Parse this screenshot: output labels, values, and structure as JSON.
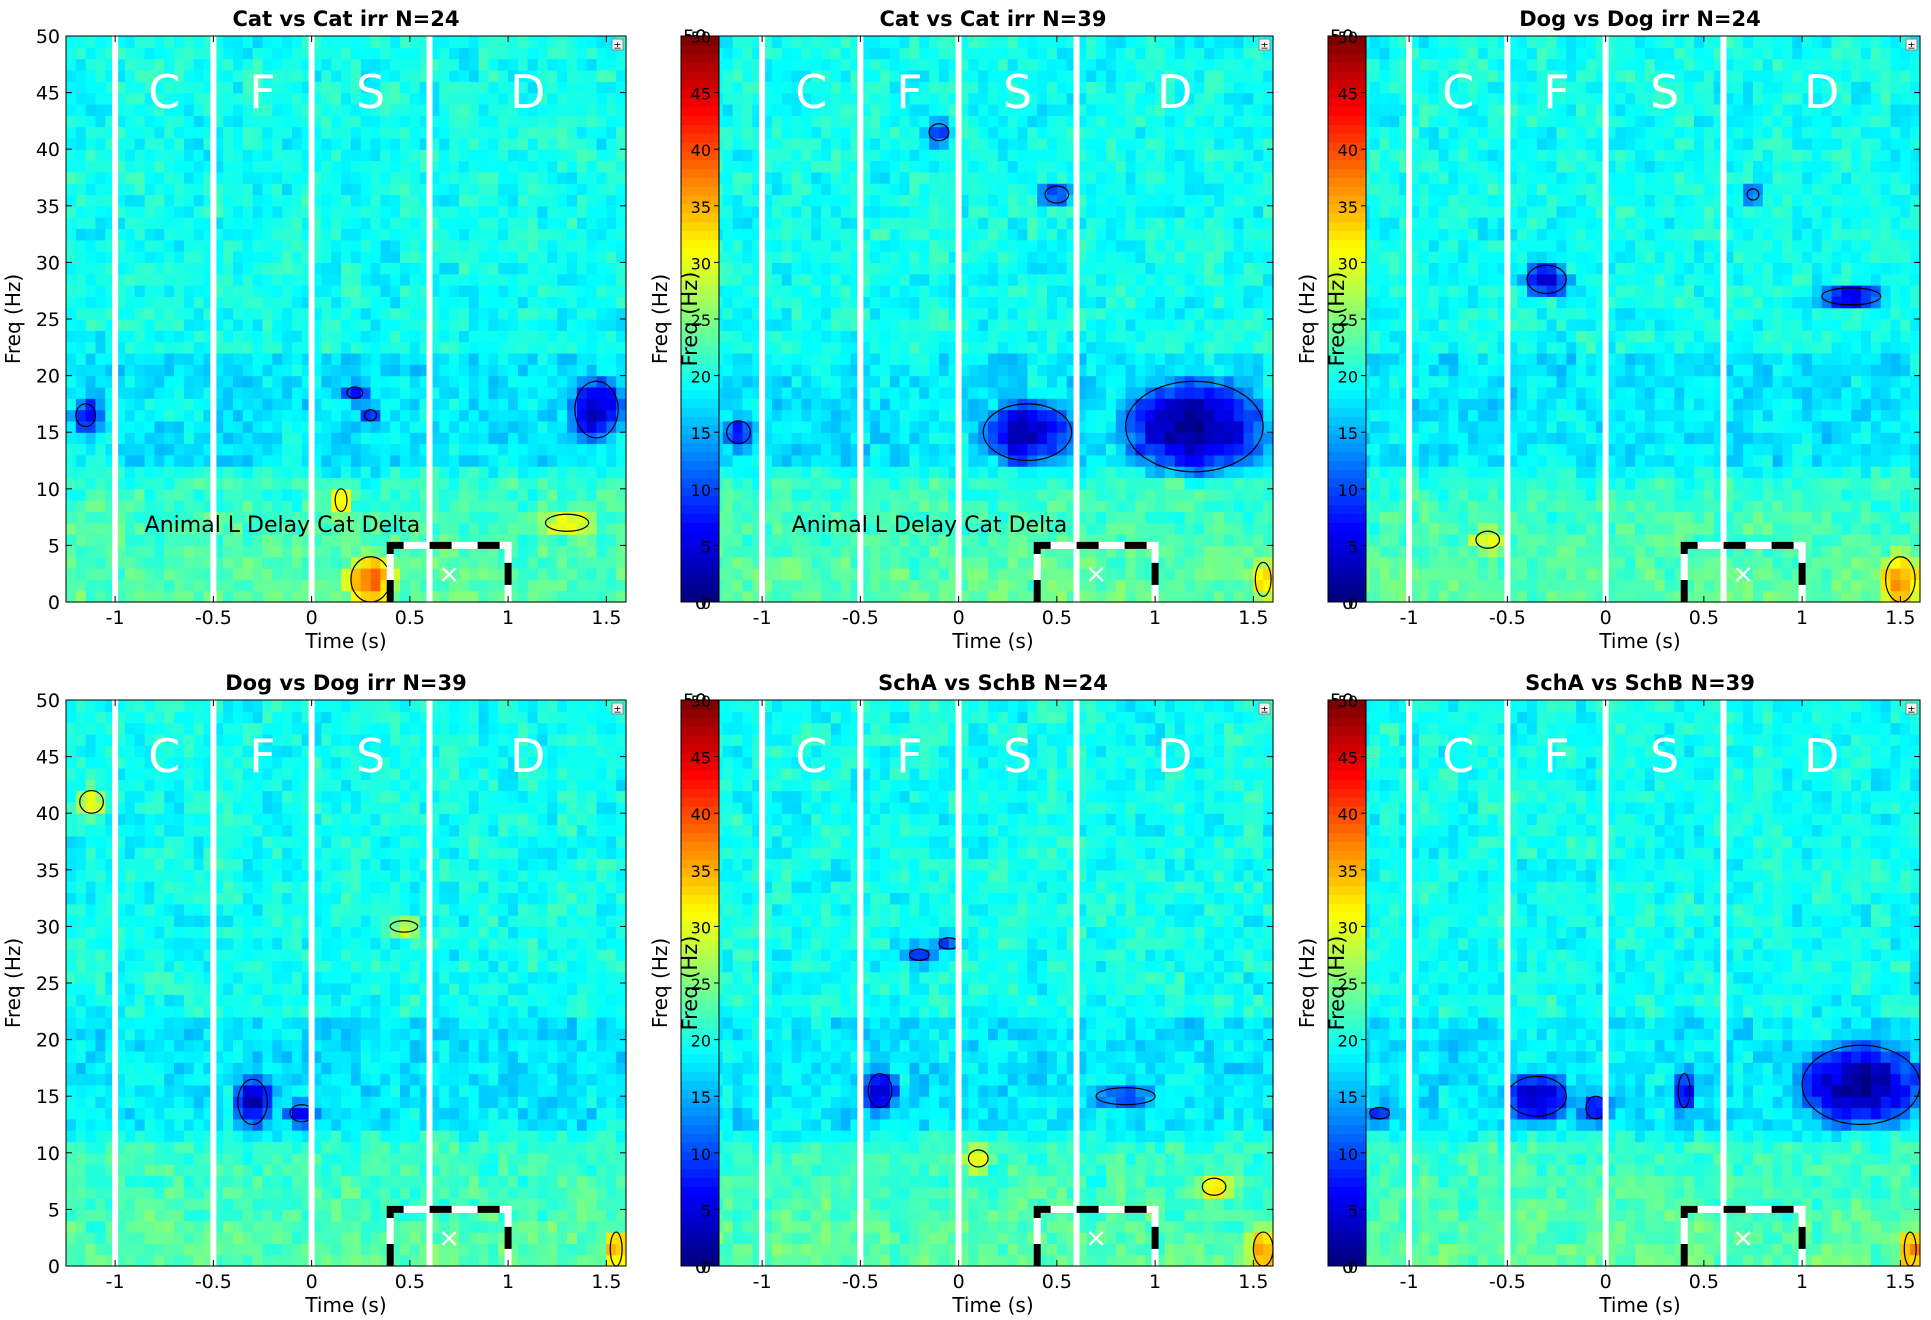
{
  "chart_data": [
    {
      "type": "heatmap",
      "title": "Cat vs Cat irr N=24",
      "xlabel": "Time (s)",
      "ylabel": "Freq (Hz)",
      "xlim": [
        -1.25,
        1.6
      ],
      "ylim": [
        0,
        50
      ],
      "xticks": [
        -1,
        -0.5,
        0,
        0.5,
        1,
        1.5
      ],
      "yticks": [
        0,
        5,
        10,
        15,
        20,
        25,
        30,
        35,
        40,
        45,
        50
      ],
      "epoch_boundaries": [
        -1,
        -0.5,
        0,
        0.6
      ],
      "epoch_labels": [
        {
          "label": "C",
          "x": -0.75
        },
        {
          "label": "F",
          "x": -0.25
        },
        {
          "label": "S",
          "x": 0.3
        },
        {
          "label": "D",
          "x": 1.1
        }
      ],
      "annotation": "Animal L Delay Cat Delta",
      "roi": {
        "x": [
          0.4,
          1.0
        ],
        "y": [
          0,
          5
        ]
      },
      "colorbar": null,
      "clusters": [
        {
          "t": 1.45,
          "f": 17,
          "w": 0.22,
          "h": 5,
          "sign": -1,
          "s": 0.9
        },
        {
          "t": -1.15,
          "f": 16.5,
          "w": 0.1,
          "h": 2,
          "sign": -1,
          "s": 0.7
        },
        {
          "t": 0.22,
          "f": 18.5,
          "w": 0.08,
          "h": 1,
          "sign": -1,
          "s": 0.6
        },
        {
          "t": 0.3,
          "f": 16.5,
          "w": 0.06,
          "h": 1,
          "sign": -1,
          "s": 0.6
        },
        {
          "t": 0.3,
          "f": 2,
          "w": 0.2,
          "h": 4,
          "sign": 1,
          "s": 0.9
        },
        {
          "t": 1.3,
          "f": 7,
          "w": 0.22,
          "h": 1.5,
          "sign": 1,
          "s": 0.6
        },
        {
          "t": 0.15,
          "f": 9,
          "w": 0.06,
          "h": 2,
          "sign": 1,
          "s": 0.7
        }
      ]
    },
    {
      "type": "heatmap",
      "title": "Cat vs Cat irr N=39",
      "xlabel": "Time (s)",
      "ylabel": "Freq (Hz)",
      "xlim": [
        -1.25,
        1.6
      ],
      "ylim": [
        0,
        50
      ],
      "xticks": [
        -1,
        -0.5,
        0,
        0.5,
        1,
        1.5
      ],
      "yticks": [
        0,
        5,
        10,
        15,
        20,
        25,
        30,
        35,
        40,
        45,
        50
      ],
      "epoch_boundaries": [
        -1,
        -0.5,
        0,
        0.6
      ],
      "epoch_labels": [
        {
          "label": "C",
          "x": -0.75
        },
        {
          "label": "F",
          "x": -0.25
        },
        {
          "label": "S",
          "x": 0.3
        },
        {
          "label": "D",
          "x": 1.1
        }
      ],
      "annotation": "Animal L Delay Cat Delta",
      "roi": {
        "x": [
          0.4,
          1.0
        ],
        "y": [
          0,
          5
        ]
      },
      "colorbar": {
        "ticks": [
          0,
          5,
          10,
          15,
          20,
          25,
          30,
          35,
          40,
          45,
          50
        ],
        "label": "Freq (Hz)"
      },
      "clusters": [
        {
          "t": 1.2,
          "f": 15.5,
          "w": 0.7,
          "h": 8,
          "sign": -1,
          "s": 1.0
        },
        {
          "t": 0.35,
          "f": 15,
          "w": 0.45,
          "h": 5,
          "sign": -1,
          "s": 0.9
        },
        {
          "t": 0.5,
          "f": 36,
          "w": 0.12,
          "h": 1.5,
          "sign": -1,
          "s": 0.7
        },
        {
          "t": -1.12,
          "f": 15,
          "w": 0.12,
          "h": 2,
          "sign": -1,
          "s": 0.6
        },
        {
          "t": -0.1,
          "f": 41.5,
          "w": 0.1,
          "h": 1.5,
          "sign": -1,
          "s": 0.6
        },
        {
          "t": 1.55,
          "f": 2,
          "w": 0.08,
          "h": 3,
          "sign": 1,
          "s": 0.6
        }
      ]
    },
    {
      "type": "heatmap",
      "title": "Dog vs Dog irr N=24",
      "xlabel": "Time (s)",
      "ylabel": "Freq (Hz)",
      "xlim": [
        -1.25,
        1.6
      ],
      "ylim": [
        0,
        50
      ],
      "xticks": [
        -1,
        -0.5,
        0,
        0.5,
        1,
        1.5
      ],
      "yticks": [
        0,
        5,
        10,
        15,
        20,
        25,
        30,
        35,
        40,
        45,
        50
      ],
      "epoch_boundaries": [
        -1,
        -0.5,
        0,
        0.6
      ],
      "epoch_labels": [
        {
          "label": "C",
          "x": -0.75
        },
        {
          "label": "F",
          "x": -0.25
        },
        {
          "label": "S",
          "x": 0.3
        },
        {
          "label": "D",
          "x": 1.1
        }
      ],
      "annotation": "",
      "roi": {
        "x": [
          0.4,
          1.0
        ],
        "y": [
          0,
          5
        ]
      },
      "colorbar": {
        "ticks": [
          0,
          5,
          10,
          15,
          20,
          25,
          30,
          35,
          40,
          45,
          50
        ],
        "label": "Freq (Hz)"
      },
      "clusters": [
        {
          "t": -0.3,
          "f": 28.5,
          "w": 0.2,
          "h": 2.5,
          "sign": -1,
          "s": 0.9
        },
        {
          "t": 1.25,
          "f": 27,
          "w": 0.3,
          "h": 1.5,
          "sign": -1,
          "s": 0.8
        },
        {
          "t": 0.75,
          "f": 36,
          "w": 0.06,
          "h": 1,
          "sign": -1,
          "s": 0.6
        },
        {
          "t": 1.5,
          "f": 2,
          "w": 0.15,
          "h": 4,
          "sign": 1,
          "s": 0.9
        },
        {
          "t": -0.6,
          "f": 5.5,
          "w": 0.12,
          "h": 1.5,
          "sign": 1,
          "s": 0.6
        }
      ]
    },
    {
      "type": "heatmap",
      "title": "Dog vs Dog irr N=39",
      "xlabel": "Time (s)",
      "ylabel": "Freq (Hz)",
      "xlim": [
        -1.25,
        1.6
      ],
      "ylim": [
        0,
        50
      ],
      "xticks": [
        -1,
        -0.5,
        0,
        0.5,
        1,
        1.5
      ],
      "yticks": [
        0,
        5,
        10,
        15,
        20,
        25,
        30,
        35,
        40,
        45,
        50
      ],
      "epoch_boundaries": [
        -1,
        -0.5,
        0,
        0.6
      ],
      "epoch_labels": [
        {
          "label": "C",
          "x": -0.75
        },
        {
          "label": "F",
          "x": -0.25
        },
        {
          "label": "S",
          "x": 0.3
        },
        {
          "label": "D",
          "x": 1.1
        }
      ],
      "annotation": "",
      "roi": {
        "x": [
          0.4,
          1.0
        ],
        "y": [
          0,
          5
        ]
      },
      "colorbar": null,
      "clusters": [
        {
          "t": -0.3,
          "f": 14.5,
          "w": 0.15,
          "h": 4,
          "sign": -1,
          "s": 0.9
        },
        {
          "t": -0.05,
          "f": 13.5,
          "w": 0.12,
          "h": 1.5,
          "sign": -1,
          "s": 0.7
        },
        {
          "t": 1.55,
          "f": 1.5,
          "w": 0.06,
          "h": 3,
          "sign": 1,
          "s": 0.8
        },
        {
          "t": -1.12,
          "f": 41,
          "w": 0.12,
          "h": 2,
          "sign": 1,
          "s": 0.6
        },
        {
          "t": 0.47,
          "f": 30,
          "w": 0.14,
          "h": 1,
          "sign": 1,
          "s": 0.5
        }
      ]
    },
    {
      "type": "heatmap",
      "title": "SchA vs SchB N=24",
      "xlabel": "Time (s)",
      "ylabel": "Freq (Hz)",
      "xlim": [
        -1.25,
        1.6
      ],
      "ylim": [
        0,
        50
      ],
      "xticks": [
        -1,
        -0.5,
        0,
        0.5,
        1,
        1.5
      ],
      "yticks": [
        0,
        5,
        10,
        15,
        20,
        25,
        30,
        35,
        40,
        45,
        50
      ],
      "epoch_boundaries": [
        -1,
        -0.5,
        0,
        0.6
      ],
      "epoch_labels": [
        {
          "label": "C",
          "x": -0.75
        },
        {
          "label": "F",
          "x": -0.25
        },
        {
          "label": "S",
          "x": 0.3
        },
        {
          "label": "D",
          "x": 1.1
        }
      ],
      "annotation": "",
      "roi": {
        "x": [
          0.4,
          1.0
        ],
        "y": [
          0,
          5
        ]
      },
      "colorbar": {
        "ticks": [
          0,
          5,
          10,
          15,
          20,
          25,
          30,
          35,
          40,
          45,
          50
        ],
        "label": "Freq (Hz)"
      },
      "clusters": [
        {
          "t": -0.4,
          "f": 15.5,
          "w": 0.12,
          "h": 3,
          "sign": -1,
          "s": 0.9
        },
        {
          "t": -0.2,
          "f": 27.5,
          "w": 0.1,
          "h": 1,
          "sign": -1,
          "s": 0.7
        },
        {
          "t": -0.05,
          "f": 28.5,
          "w": 0.1,
          "h": 1,
          "sign": -1,
          "s": 0.6
        },
        {
          "t": 0.85,
          "f": 15,
          "w": 0.3,
          "h": 1.5,
          "sign": -1,
          "s": 0.5
        },
        {
          "t": 1.55,
          "f": 1.5,
          "w": 0.1,
          "h": 3,
          "sign": 1,
          "s": 0.8
        },
        {
          "t": 1.3,
          "f": 7,
          "w": 0.12,
          "h": 1.5,
          "sign": 1,
          "s": 0.6
        },
        {
          "t": 0.1,
          "f": 9.5,
          "w": 0.1,
          "h": 1.5,
          "sign": 1,
          "s": 0.6
        }
      ]
    },
    {
      "type": "heatmap",
      "title": "SchA vs SchB N=39",
      "xlabel": "Time (s)",
      "ylabel": "Freq (Hz)",
      "xlim": [
        -1.25,
        1.6
      ],
      "ylim": [
        0,
        50
      ],
      "xticks": [
        -1,
        -0.5,
        0,
        0.5,
        1,
        1.5
      ],
      "yticks": [
        0,
        5,
        10,
        15,
        20,
        25,
        30,
        35,
        40,
        45,
        50
      ],
      "epoch_boundaries": [
        -1,
        -0.5,
        0,
        0.6
      ],
      "epoch_labels": [
        {
          "label": "C",
          "x": -0.75
        },
        {
          "label": "F",
          "x": -0.25
        },
        {
          "label": "S",
          "x": 0.3
        },
        {
          "label": "D",
          "x": 1.1
        }
      ],
      "annotation": "",
      "roi": {
        "x": [
          0.4,
          1.0
        ],
        "y": [
          0,
          5
        ]
      },
      "colorbar": {
        "ticks": [
          0,
          5,
          10,
          15,
          20,
          25,
          30,
          35,
          40,
          45,
          50
        ],
        "label": "Freq (Hz)"
      },
      "clusters": [
        {
          "t": 1.3,
          "f": 16,
          "w": 0.6,
          "h": 7,
          "sign": -1,
          "s": 1.0
        },
        {
          "t": -0.35,
          "f": 15,
          "w": 0.3,
          "h": 3.5,
          "sign": -1,
          "s": 0.9
        },
        {
          "t": -0.05,
          "f": 14,
          "w": 0.1,
          "h": 2,
          "sign": -1,
          "s": 0.7
        },
        {
          "t": 0.4,
          "f": 15.5,
          "w": 0.06,
          "h": 3,
          "sign": -1,
          "s": 0.7
        },
        {
          "t": -1.15,
          "f": 13.5,
          "w": 0.1,
          "h": 1,
          "sign": -1,
          "s": 0.5
        },
        {
          "t": 1.55,
          "f": 1.5,
          "w": 0.06,
          "h": 3,
          "sign": 1,
          "s": 0.8
        }
      ]
    }
  ],
  "ui": {
    "corner_button_glyph": "±",
    "roi_marker_glyph": "×"
  }
}
